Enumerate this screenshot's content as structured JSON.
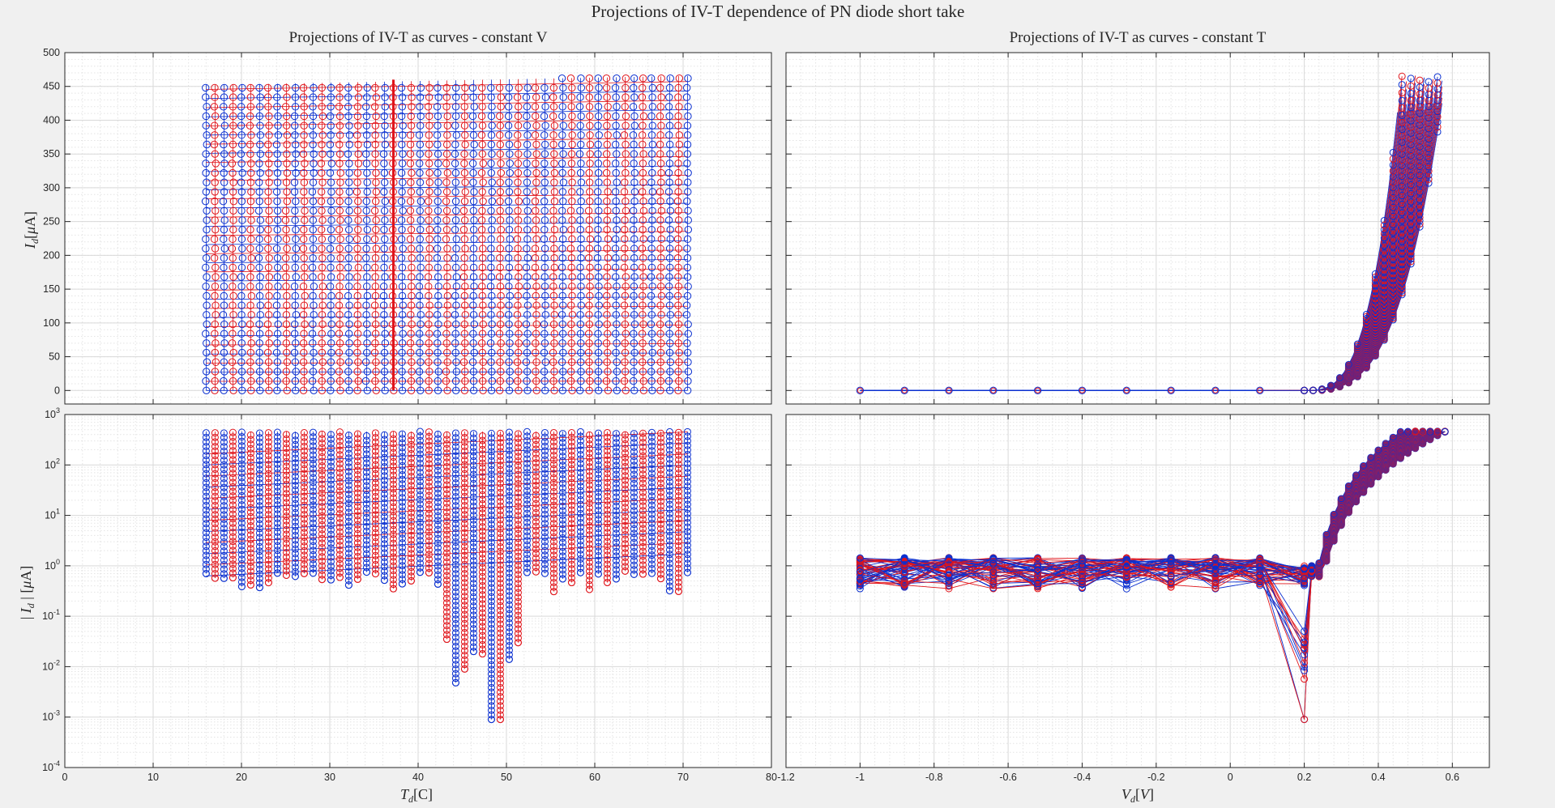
{
  "figure": {
    "title": "Projections of IV-T dependence of PN diode short take"
  },
  "colors": {
    "seriesA": "#0a2fd0",
    "seriesB": "#e0141a",
    "background": "#f0f0f0",
    "axes": "#ffffff"
  },
  "chart_data": [
    {
      "type": "line",
      "name": "top-left",
      "title": "Projections of IV-T as curves - constant V",
      "ylabel": "I_d[μA]",
      "xlim": [
        0,
        80
      ],
      "ylim": [
        -20,
        500
      ],
      "yscale": "linear",
      "xticks": [
        "0",
        "10",
        "20",
        "30",
        "40",
        "50",
        "60",
        "70",
        "80"
      ],
      "yticks": [
        "0",
        "50",
        "100",
        "150",
        "200",
        "250",
        "300",
        "350",
        "400",
        "450",
        "500"
      ],
      "yticks_values": [
        0,
        50,
        100,
        150,
        200,
        250,
        300,
        350,
        400,
        450,
        500
      ],
      "grid": true,
      "x_range_data": [
        16,
        70.5
      ],
      "y_range_data": [
        0,
        465
      ]
    },
    {
      "type": "line",
      "name": "top-right",
      "title": "Projections of IV-T as curves - constant T",
      "xlim": [
        -1.2,
        0.7
      ],
      "ylim": [
        -20,
        500
      ],
      "yscale": "linear",
      "grid": true,
      "x_points": [
        -1.0,
        -0.88,
        -0.76,
        -0.64,
        -0.52,
        -0.4,
        -0.28,
        -0.16,
        -0.04,
        0.08,
        0.2,
        0.32,
        0.44,
        0.56
      ],
      "y_range_data": [
        0,
        465
      ]
    },
    {
      "type": "line",
      "name": "bottom-left",
      "xlabel": "T_d[C]",
      "ylabel": "| I_d | [μA]",
      "xlim": [
        0,
        80
      ],
      "ylim": [
        -4,
        3
      ],
      "yscale": "log",
      "xticks": [
        "0",
        "10",
        "20",
        "30",
        "40",
        "50",
        "60",
        "70",
        "80"
      ],
      "yticks_exponents": [
        "-4",
        "-3",
        "-2",
        "-1",
        "0",
        "1",
        "2",
        "3"
      ],
      "grid": true,
      "y_min_data": 0.0009,
      "y_max_data": 465
    },
    {
      "type": "line",
      "name": "bottom-right",
      "xlabel": "V_d[V]",
      "xlim": [
        -1.2,
        0.7
      ],
      "ylim": [
        -4,
        3
      ],
      "yscale": "log",
      "xticks": [
        "-1.2",
        "-1",
        "-0.8",
        "-0.6",
        "-0.4",
        "-0.2",
        "0",
        "0.2",
        "0.4",
        "0.6"
      ],
      "grid": true,
      "y_min_data": 0.0009,
      "y_max_data": 465
    }
  ]
}
